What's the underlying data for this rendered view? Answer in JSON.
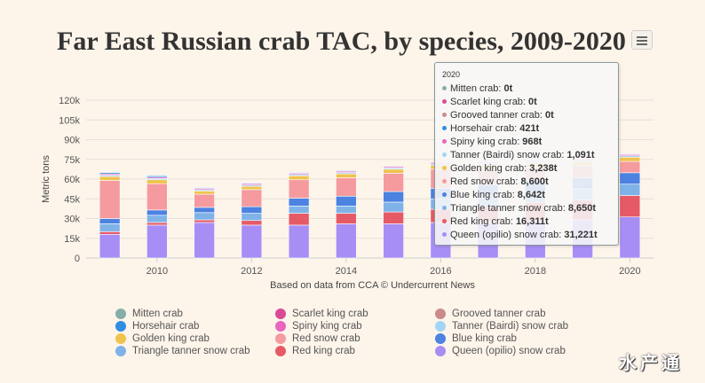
{
  "title": "Far East Russian crab TAC, by species, 2009-2020",
  "menu_icon": "hamburger-menu-icon",
  "watermark": "水产通",
  "chart_data": {
    "type": "bar",
    "stacked": true,
    "title": "Far East Russian crab TAC, by species, 2009-2020",
    "xlabel": "Based on data from CCA © Undercurrent News",
    "ylabel": "Metric tons",
    "ylim": [
      0,
      120000
    ],
    "yticks": [
      "0",
      "15k",
      "30k",
      "45k",
      "60k",
      "75k",
      "90k",
      "105k",
      "120k"
    ],
    "ytick_values": [
      0,
      15000,
      30000,
      45000,
      60000,
      75000,
      90000,
      105000,
      120000
    ],
    "xtick_labels": [
      "2010",
      "2012",
      "2014",
      "2016",
      "2018",
      "2020"
    ],
    "categories": [
      "2009",
      "2010",
      "2011",
      "2012",
      "2013",
      "2014",
      "2015",
      "2016",
      "2017",
      "2018",
      "2019",
      "2020"
    ],
    "grid": true,
    "legend_position": "bottom",
    "series": [
      {
        "name": "Queen (opilio) snow crab",
        "color": "#a78ef5",
        "values": [
          18000,
          25000,
          27000,
          25000,
          25000,
          26000,
          26000,
          27000,
          27000,
          28000,
          29000,
          31221
        ]
      },
      {
        "name": "Red king crab",
        "color": "#e65a66",
        "values": [
          2000,
          2000,
          2000,
          3500,
          9000,
          8000,
          9000,
          10000,
          12000,
          14000,
          15000,
          16311
        ]
      },
      {
        "name": "Triangle tanner snow crab",
        "color": "#7fb3e8",
        "values": [
          6000,
          5500,
          5500,
          5500,
          5500,
          5500,
          7500,
          8000,
          8500,
          8500,
          8600,
          8650
        ]
      },
      {
        "name": "Blue king crab",
        "color": "#4c82e0",
        "values": [
          4000,
          4000,
          4000,
          5000,
          6000,
          7500,
          8000,
          8000,
          8200,
          8400,
          8500,
          8642
        ]
      },
      {
        "name": "Red snow crab",
        "color": "#f59a9e",
        "values": [
          29000,
          20000,
          10000,
          13000,
          14000,
          14000,
          14000,
          14500,
          12000,
          10000,
          9000,
          8600
        ]
      },
      {
        "name": "Golden king crab",
        "color": "#f0c34e",
        "values": [
          3000,
          3000,
          2500,
          2500,
          3000,
          3000,
          3000,
          3100,
          3200,
          3200,
          3200,
          3238
        ]
      },
      {
        "name": "Tanner (Bairdi) snow crab",
        "color": "#a3d4f5",
        "values": [
          1000,
          1000,
          1000,
          1000,
          1000,
          1000,
          1000,
          1050,
          1080,
          1090,
          1091,
          1091
        ]
      },
      {
        "name": "Spiny king crab",
        "color": "#e866c0",
        "values": [
          1000,
          1000,
          1000,
          1000,
          1000,
          1000,
          1000,
          1000,
          968,
          968,
          968,
          968
        ]
      },
      {
        "name": "Horsehair crab",
        "color": "#2f8ee0",
        "values": [
          1000,
          1000,
          500,
          500,
          500,
          500,
          500,
          450,
          430,
          421,
          421,
          421
        ]
      },
      {
        "name": "Grooved tanner crab",
        "color": "#c98a8a",
        "values": [
          0,
          0,
          0,
          0,
          0,
          0,
          0,
          0,
          0,
          0,
          0,
          0
        ]
      },
      {
        "name": "Scarlet king crab",
        "color": "#d94a95",
        "values": [
          0,
          0,
          0,
          0,
          0,
          0,
          0,
          0,
          0,
          0,
          0,
          0
        ]
      },
      {
        "name": "Mitten crab",
        "color": "#86aea8",
        "values": [
          500,
          500,
          500,
          500,
          0,
          0,
          0,
          0,
          0,
          0,
          0,
          0
        ]
      }
    ]
  },
  "legend": [
    {
      "name": "Mitten crab",
      "color": "#86aea8"
    },
    {
      "name": "Scarlet king crab",
      "color": "#d94a95"
    },
    {
      "name": "Grooved tanner crab",
      "color": "#c98a8a"
    },
    {
      "name": "Horsehair crab",
      "color": "#2f8ee0"
    },
    {
      "name": "Spiny king crab",
      "color": "#e866c0"
    },
    {
      "name": "Tanner (Bairdi) snow crab",
      "color": "#a3d4f5"
    },
    {
      "name": "Golden king crab",
      "color": "#f0c34e"
    },
    {
      "name": "Red snow crab",
      "color": "#f59a9e"
    },
    {
      "name": "Blue king crab",
      "color": "#4c82e0"
    },
    {
      "name": "Triangle tanner snow crab",
      "color": "#7fb3e8"
    },
    {
      "name": "Red king crab",
      "color": "#e65a66"
    },
    {
      "name": "Queen (opilio) snow crab",
      "color": "#a78ef5"
    }
  ],
  "tooltip": {
    "header": "2020",
    "rows": [
      {
        "name": "Mitten crab:",
        "value": "0t",
        "color": "#86aea8"
      },
      {
        "name": "Scarlet king crab:",
        "value": "0t",
        "color": "#d94a95"
      },
      {
        "name": "Grooved tanner crab:",
        "value": "0t",
        "color": "#c98a8a"
      },
      {
        "name": "Horsehair crab:",
        "value": "421t",
        "color": "#2f8ee0"
      },
      {
        "name": "Spiny king crab:",
        "value": "968t",
        "color": "#e866c0"
      },
      {
        "name": "Tanner (Bairdi) snow crab:",
        "value": "1,091t",
        "color": "#a3d4f5"
      },
      {
        "name": "Golden king crab:",
        "value": "3,238t",
        "color": "#f0c34e"
      },
      {
        "name": "Red snow crab:",
        "value": "8,600t",
        "color": "#f59a9e"
      },
      {
        "name": "Blue king crab:",
        "value": "8,642t",
        "color": "#4c82e0"
      },
      {
        "name": "Triangle tanner snow crab:",
        "value": "8,650t",
        "color": "#7fb3e8"
      },
      {
        "name": "Red king crab:",
        "value": "16,311t",
        "color": "#e65a66"
      },
      {
        "name": "Queen (opilio) snow crab:",
        "value": "31,221t",
        "color": "#a78ef5"
      }
    ]
  }
}
